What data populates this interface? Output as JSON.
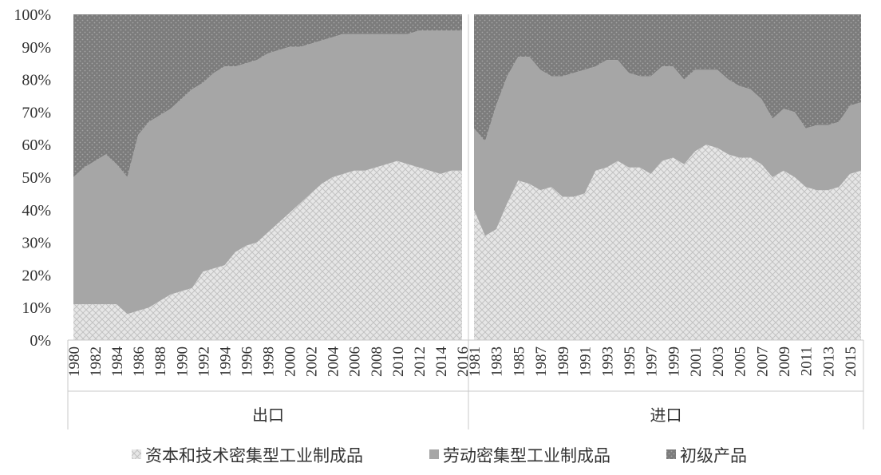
{
  "chart_data": {
    "type": "area",
    "stacked": "percent",
    "ylim": [
      0,
      100
    ],
    "y_ticks": [
      "0%",
      "10%",
      "20%",
      "30%",
      "40%",
      "50%",
      "60%",
      "70%",
      "80%",
      "90%",
      "100%"
    ],
    "grid": false,
    "legend_position": "bottom",
    "colors": {
      "capital_tech": "#e4e4e4",
      "labor": "#a6a6a6",
      "primary": "#7f7f7f"
    },
    "legend": [
      {
        "key": "capital_tech",
        "label": "资本和技术密集型工业制成品",
        "icon": "crosshatch-square-icon"
      },
      {
        "key": "labor",
        "label": "劳动密集型工业制成品",
        "icon": "solid-gray-square-icon"
      },
      {
        "key": "primary",
        "label": "初级产品",
        "icon": "dotted-square-icon"
      }
    ],
    "panels": [
      {
        "name": "出口",
        "x": [
          1980,
          1981,
          1982,
          1983,
          1984,
          1985,
          1986,
          1987,
          1988,
          1989,
          1990,
          1991,
          1992,
          1993,
          1994,
          1995,
          1996,
          1997,
          1998,
          1999,
          2000,
          2001,
          2002,
          2003,
          2004,
          2005,
          2006,
          2007,
          2008,
          2009,
          2010,
          2011,
          2012,
          2013,
          2014,
          2015,
          2016
        ],
        "x_tick_labels": [
          "1980",
          "1982",
          "1984",
          "1986",
          "1988",
          "1990",
          "1992",
          "1994",
          "1996",
          "1998",
          "2000",
          "2002",
          "2004",
          "2006",
          "2008",
          "2010",
          "2012",
          "2014",
          "2016"
        ],
        "series": [
          {
            "key": "capital_tech",
            "name": "资本和技术密集型工业制成品",
            "values": [
              11,
              11,
              11,
              11,
              11,
              8,
              9,
              10,
              12,
              14,
              15,
              16,
              21,
              22,
              23,
              27,
              29,
              30,
              33,
              36,
              39,
              42,
              45,
              48,
              50,
              51,
              52,
              52,
              53,
              54,
              55,
              54,
              53,
              52,
              51,
              52,
              52
            ]
          },
          {
            "key": "labor",
            "name": "劳动密集型工业制成品",
            "values": [
              39,
              42,
              44,
              46,
              43,
              42,
              54,
              57,
              57,
              57,
              59,
              61,
              58,
              60,
              61,
              57,
              56,
              56,
              55,
              53,
              51,
              48,
              46,
              44,
              43,
              43,
              42,
              42,
              41,
              40,
              39,
              40,
              42,
              43,
              44,
              43,
              43
            ]
          },
          {
            "key": "primary",
            "name": "初级产品",
            "values": [
              50,
              47,
              45,
              43,
              46,
              50,
              37,
              33,
              31,
              29,
              26,
              23,
              21,
              18,
              16,
              16,
              15,
              14,
              12,
              11,
              10,
              10,
              9,
              8,
              7,
              6,
              6,
              6,
              6,
              6,
              6,
              6,
              5,
              5,
              5,
              5,
              5
            ]
          }
        ]
      },
      {
        "name": "进口",
        "x": [
          1981,
          1982,
          1983,
          1984,
          1985,
          1986,
          1987,
          1988,
          1989,
          1990,
          1991,
          1992,
          1993,
          1994,
          1995,
          1996,
          1997,
          1998,
          1999,
          2000,
          2001,
          2002,
          2003,
          2004,
          2005,
          2006,
          2007,
          2008,
          2009,
          2010,
          2011,
          2012,
          2013,
          2014,
          2015,
          2016
        ],
        "x_tick_labels": [
          "1981",
          "1983",
          "1985",
          "1987",
          "1989",
          "1991",
          "1993",
          "1995",
          "1997",
          "1999",
          "2001",
          "2003",
          "2005",
          "2007",
          "2009",
          "2011",
          "2013",
          "2015"
        ],
        "series": [
          {
            "key": "capital_tech",
            "name": "资本和技术密集型工业制成品",
            "values": [
              40,
              32,
              34,
              42,
              49,
              48,
              46,
              47,
              44,
              44,
              45,
              52,
              53,
              55,
              53,
              53,
              51,
              55,
              56,
              54,
              58,
              60,
              59,
              57,
              56,
              56,
              54,
              50,
              52,
              50,
              47,
              46,
              46,
              47,
              51,
              52
            ]
          },
          {
            "key": "labor",
            "name": "劳动密集型工业制成品",
            "values": [
              25,
              29,
              38,
              39,
              38,
              39,
              37,
              34,
              37,
              38,
              38,
              32,
              33,
              31,
              29,
              28,
              30,
              29,
              28,
              26,
              25,
              23,
              24,
              23,
              22,
              21,
              20,
              18,
              19,
              20,
              18,
              20,
              20,
              20,
              21,
              21
            ]
          },
          {
            "key": "primary",
            "name": "初级产品",
            "values": [
              35,
              39,
              28,
              19,
              13,
              13,
              17,
              19,
              19,
              18,
              17,
              16,
              14,
              14,
              18,
              19,
              19,
              16,
              16,
              20,
              17,
              17,
              17,
              20,
              22,
              23,
              26,
              32,
              29,
              30,
              35,
              34,
              34,
              33,
              28,
              27
            ]
          }
        ]
      }
    ]
  }
}
